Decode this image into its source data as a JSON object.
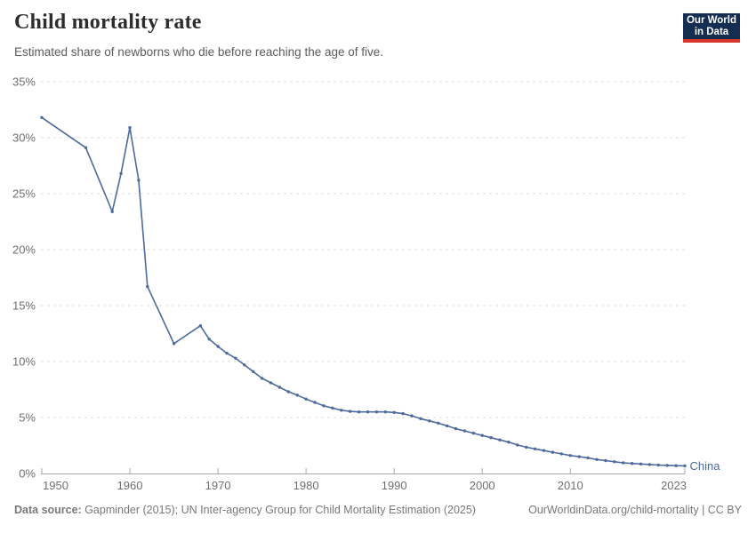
{
  "header": {
    "title": "Child mortality rate",
    "subtitle": "Estimated share of newborns who die before reaching the age of five."
  },
  "logo": {
    "line1": "Our World",
    "line2": "in Data",
    "bg_color": "#142d50",
    "bar_color": "#d7362a"
  },
  "footer": {
    "source_label": "Data source:",
    "source_text": " Gapminder (2015); UN Inter-agency Group for Child Mortality Estimation (2025)",
    "right_text": "OurWorldinData.org/child-mortality | CC BY"
  },
  "chart_data": {
    "type": "line",
    "title": "Child mortality rate",
    "subtitle": "Estimated share of newborns who die before reaching the age of five.",
    "xlabel": "",
    "ylabel": "",
    "xlim": [
      1950,
      2023
    ],
    "ylim": [
      0,
      35
    ],
    "grid": "horizontal-dashed",
    "legend": "end-of-line-label",
    "x_ticks": [
      {
        "value": 1950,
        "label": "1950"
      },
      {
        "value": 1960,
        "label": "1960"
      },
      {
        "value": 1970,
        "label": "1970"
      },
      {
        "value": 1980,
        "label": "1980"
      },
      {
        "value": 1990,
        "label": "1990"
      },
      {
        "value": 2000,
        "label": "2000"
      },
      {
        "value": 2010,
        "label": "2010"
      },
      {
        "value": 2023,
        "label": "2023"
      }
    ],
    "y_ticks": [
      {
        "value": 0,
        "label": "0%"
      },
      {
        "value": 5,
        "label": "5%"
      },
      {
        "value": 10,
        "label": "10%"
      },
      {
        "value": 15,
        "label": "15%"
      },
      {
        "value": 20,
        "label": "20%"
      },
      {
        "value": 25,
        "label": "25%"
      },
      {
        "value": 30,
        "label": "30%"
      },
      {
        "value": 35,
        "label": "35%"
      }
    ],
    "colors": {
      "grid": "#dcdcdc",
      "axis": "#a8a8a8",
      "tick_text": "#6f6f6f"
    },
    "series": [
      {
        "name": "China",
        "end_label": "China",
        "color": "#4c6a9c",
        "unit": "%",
        "points": [
          [
            1950,
            31.8
          ],
          [
            1955,
            29.1
          ],
          [
            1958,
            23.4
          ],
          [
            1959,
            26.8
          ],
          [
            1960,
            30.9
          ],
          [
            1961,
            26.2
          ],
          [
            1962,
            16.7
          ],
          [
            1965,
            11.6
          ],
          [
            1968,
            13.2
          ],
          [
            1969,
            12.0
          ],
          [
            1970,
            11.35
          ],
          [
            1971,
            10.75
          ],
          [
            1972,
            10.3
          ],
          [
            1973,
            9.7
          ],
          [
            1974,
            9.1
          ],
          [
            1975,
            8.5
          ],
          [
            1976,
            8.1
          ],
          [
            1977,
            7.7
          ],
          [
            1978,
            7.3
          ],
          [
            1979,
            7.0
          ],
          [
            1980,
            6.65
          ],
          [
            1981,
            6.35
          ],
          [
            1982,
            6.05
          ],
          [
            1983,
            5.85
          ],
          [
            1984,
            5.65
          ],
          [
            1985,
            5.55
          ],
          [
            1986,
            5.5
          ],
          [
            1987,
            5.5
          ],
          [
            1988,
            5.5
          ],
          [
            1989,
            5.5
          ],
          [
            1990,
            5.45
          ],
          [
            1991,
            5.35
          ],
          [
            1992,
            5.15
          ],
          [
            1993,
            4.9
          ],
          [
            1994,
            4.7
          ],
          [
            1995,
            4.5
          ],
          [
            1996,
            4.25
          ],
          [
            1997,
            4.0
          ],
          [
            1998,
            3.8
          ],
          [
            1999,
            3.6
          ],
          [
            2000,
            3.4
          ],
          [
            2001,
            3.2
          ],
          [
            2002,
            3.0
          ],
          [
            2003,
            2.8
          ],
          [
            2004,
            2.55
          ],
          [
            2005,
            2.35
          ],
          [
            2006,
            2.2
          ],
          [
            2007,
            2.05
          ],
          [
            2008,
            1.9
          ],
          [
            2009,
            1.75
          ],
          [
            2010,
            1.6
          ],
          [
            2011,
            1.5
          ],
          [
            2012,
            1.4
          ],
          [
            2013,
            1.25
          ],
          [
            2014,
            1.15
          ],
          [
            2015,
            1.05
          ],
          [
            2016,
            0.95
          ],
          [
            2017,
            0.9
          ],
          [
            2018,
            0.85
          ],
          [
            2019,
            0.8
          ],
          [
            2020,
            0.75
          ],
          [
            2021,
            0.72
          ],
          [
            2022,
            0.7
          ],
          [
            2023,
            0.68
          ]
        ]
      }
    ]
  }
}
